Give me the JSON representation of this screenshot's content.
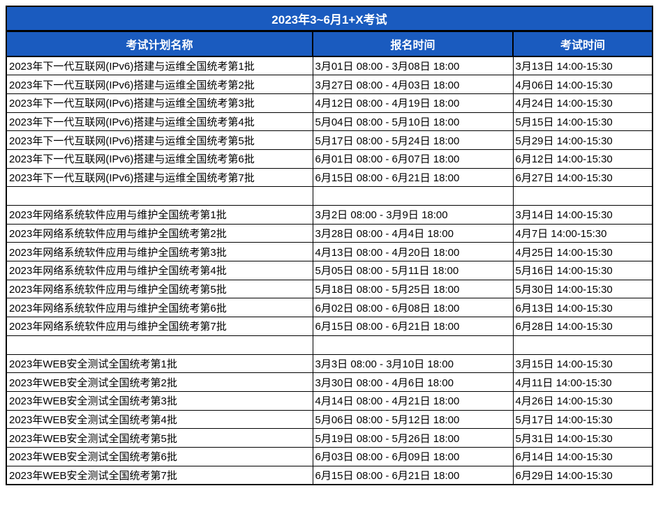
{
  "title": "2023年3~6月1+X考试",
  "columns": [
    "考试计划名称",
    "报名时间",
    "考试时间"
  ],
  "colors": {
    "header_bg": "#1a5bbf",
    "header_text": "#ffffff",
    "border": "#000000",
    "cell_text": "#000000",
    "page_bg": "#ffffff"
  },
  "rows": [
    [
      "2023年下一代互联网(IPv6)搭建与运维全国统考第1批",
      "3月01日 08:00 - 3月08日 18:00",
      "3月13日 14:00-15:30"
    ],
    [
      "2023年下一代互联网(IPv6)搭建与运维全国统考第2批",
      "3月27日 08:00 - 4月03日 18:00",
      "4月06日 14:00-15:30"
    ],
    [
      "2023年下一代互联网(IPv6)搭建与运维全国统考第3批",
      "4月12日 08:00 - 4月19日 18:00",
      "4月24日 14:00-15:30"
    ],
    [
      "2023年下一代互联网(IPv6)搭建与运维全国统考第4批",
      "5月04日 08:00 - 5月10日 18:00",
      "5月15日 14:00-15:30"
    ],
    [
      "2023年下一代互联网(IPv6)搭建与运维全国统考第5批",
      "5月17日 08:00 - 5月24日 18:00",
      "5月29日 14:00-15:30"
    ],
    [
      "2023年下一代互联网(IPv6)搭建与运维全国统考第6批",
      "6月01日 08:00 - 6月07日 18:00",
      "6月12日 14:00-15:30"
    ],
    [
      "2023年下一代互联网(IPv6)搭建与运维全国统考第7批",
      "6月15日 08:00 - 6月21日 18:00",
      "6月27日 14:00-15:30"
    ],
    [
      "",
      "",
      ""
    ],
    [
      "2023年网络系统软件应用与维护全国统考第1批",
      "3月2日 08:00 - 3月9日 18:00",
      "3月14日 14:00-15:30"
    ],
    [
      "2023年网络系统软件应用与维护全国统考第2批",
      "3月28日 08:00 - 4月4日 18:00",
      "4月7日 14:00-15:30"
    ],
    [
      "2023年网络系统软件应用与维护全国统考第3批",
      "4月13日 08:00 - 4月20日 18:00",
      "4月25日 14:00-15:30"
    ],
    [
      "2023年网络系统软件应用与维护全国统考第4批",
      "5月05日 08:00 - 5月11日 18:00",
      "5月16日 14:00-15:30"
    ],
    [
      "2023年网络系统软件应用与维护全国统考第5批",
      "5月18日 08:00 - 5月25日 18:00",
      "5月30日 14:00-15:30"
    ],
    [
      "2023年网络系统软件应用与维护全国统考第6批",
      "6月02日 08:00 - 6月08日 18:00",
      "6月13日 14:00-15:30"
    ],
    [
      "2023年网络系统软件应用与维护全国统考第7批",
      "6月15日 08:00 - 6月21日 18:00",
      "6月28日 14:00-15:30"
    ],
    [
      "",
      "",
      ""
    ],
    [
      "2023年WEB安全测试全国统考第1批",
      "3月3日 08:00 - 3月10日 18:00",
      "3月15日 14:00-15:30"
    ],
    [
      "2023年WEB安全测试全国统考第2批",
      "3月30日 08:00 - 4月6日 18:00",
      "4月11日 14:00-15:30"
    ],
    [
      "2023年WEB安全测试全国统考第3批",
      "4月14日 08:00 - 4月21日 18:00",
      "4月26日 14:00-15:30"
    ],
    [
      "2023年WEB安全测试全国统考第4批",
      "5月06日 08:00 - 5月12日 18:00",
      "5月17日 14:00-15:30"
    ],
    [
      "2023年WEB安全测试全国统考第5批",
      "5月19日 08:00 - 5月26日 18:00",
      "5月31日 14:00-15:30"
    ],
    [
      "2023年WEB安全测试全国统考第6批",
      "6月03日 08:00 - 6月09日 18:00",
      "6月14日 14:00-15:30"
    ],
    [
      "2023年WEB安全测试全国统考第7批",
      "6月15日 08:00 - 6月21日 18:00",
      "6月29日 14:00-15:30"
    ]
  ]
}
